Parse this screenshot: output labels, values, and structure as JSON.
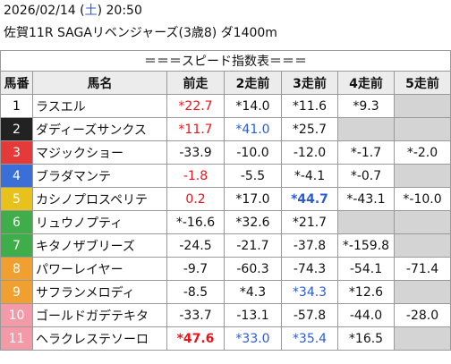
{
  "header": {
    "datetime": [
      {
        "text": "2026/02/14 ("
      },
      {
        "text": "土",
        "color": "#2a5bd7"
      },
      {
        "text": ") 20:50"
      }
    ],
    "race": "佐賀11R SAGAリベンジャーズ(3歳8) ダ1400m"
  },
  "table": {
    "title": "＝＝＝スピード指数表＝＝＝",
    "columns": [
      "馬番",
      "馬名",
      "前走",
      "2走前",
      "3走前",
      "4走前",
      "5走前"
    ],
    "empty_color": "#d4d4d4",
    "rows": [
      {
        "number": "1",
        "frame": "#ffffff",
        "frame_text": "#000000",
        "name": "ラスエル",
        "cells": [
          {
            "text": "*22.7",
            "color": "#e8141c"
          },
          {
            "text": "*14.0"
          },
          {
            "text": "*11.6"
          },
          {
            "text": "*9.3"
          },
          null
        ]
      },
      {
        "number": "2",
        "frame": "#222222",
        "frame_text": "#ffffff",
        "name": "ダディーズサンクス",
        "cells": [
          {
            "text": "*11.7",
            "color": "#e8141c"
          },
          {
            "text": "*41.0",
            "color": "#2a5bd7"
          },
          {
            "text": "*25.7"
          },
          null,
          null
        ]
      },
      {
        "number": "3",
        "frame": "#e53a3a",
        "frame_text": "#ffffff",
        "name": "マジックショー",
        "cells": [
          {
            "text": "-33.9"
          },
          {
            "text": "-10.0"
          },
          {
            "text": "-12.0"
          },
          {
            "text": "*-1.7"
          },
          {
            "text": "*-2.0"
          }
        ]
      },
      {
        "number": "4",
        "frame": "#3b6fd8",
        "frame_text": "#ffffff",
        "name": "ブラダマンテ",
        "cells": [
          {
            "text": "-1.8",
            "color": "#e8141c"
          },
          {
            "text": "-5.5"
          },
          {
            "text": "*-4.1"
          },
          {
            "text": "*-0.7"
          },
          null
        ]
      },
      {
        "number": "5",
        "frame": "#e8c21c",
        "frame_text": "#ffffff",
        "name": "カシノプロスペリテ",
        "cells": [
          {
            "text": "0.2",
            "color": "#e8141c"
          },
          {
            "text": "*17.0"
          },
          {
            "text": "*44.7",
            "color": "#2a5bd7",
            "bold": true
          },
          {
            "text": "*-43.1"
          },
          {
            "text": "*-10.0"
          }
        ]
      },
      {
        "number": "6",
        "frame": "#3fae4a",
        "frame_text": "#ffffff",
        "name": "リュウノプティ",
        "cells": [
          {
            "text": "*-16.6"
          },
          {
            "text": "*32.6"
          },
          {
            "text": "*21.7"
          },
          null,
          null
        ]
      },
      {
        "number": "7",
        "frame": "#3fae4a",
        "frame_text": "#ffffff",
        "name": "キタノザブリーズ",
        "cells": [
          {
            "text": "-24.5"
          },
          {
            "text": "-21.7"
          },
          {
            "text": "-37.8"
          },
          {
            "text": "*-159.8"
          },
          null
        ]
      },
      {
        "number": "8",
        "frame": "#f0a030",
        "frame_text": "#ffffff",
        "name": "パワーレイヤー",
        "cells": [
          {
            "text": "-9.7"
          },
          {
            "text": "-60.3"
          },
          {
            "text": "-74.3"
          },
          {
            "text": "-54.1"
          },
          {
            "text": "-71.4"
          }
        ]
      },
      {
        "number": "9",
        "frame": "#f0a030",
        "frame_text": "#ffffff",
        "name": "サフランメロディ",
        "cells": [
          {
            "text": "-8.5"
          },
          {
            "text": "*4.3"
          },
          {
            "text": "*34.3",
            "color": "#2a5bd7"
          },
          {
            "text": "*12.6"
          },
          null
        ]
      },
      {
        "number": "10",
        "frame": "#f29aa8",
        "frame_text": "#ffffff",
        "name": "ゴールドガデテキタ",
        "cells": [
          {
            "text": "-33.7"
          },
          {
            "text": "-13.1"
          },
          {
            "text": "-57.8"
          },
          {
            "text": "-44.0"
          },
          {
            "text": "-28.0"
          }
        ]
      },
      {
        "number": "11",
        "frame": "#f29aa8",
        "frame_text": "#ffffff",
        "name": "ヘラクレステソーロ",
        "cells": [
          {
            "text": "*47.6",
            "color": "#e8141c",
            "bold": true
          },
          {
            "text": "*33.0",
            "color": "#2a5bd7"
          },
          {
            "text": "*35.4",
            "color": "#2a5bd7"
          },
          {
            "text": "*16.5"
          },
          null
        ]
      }
    ]
  }
}
